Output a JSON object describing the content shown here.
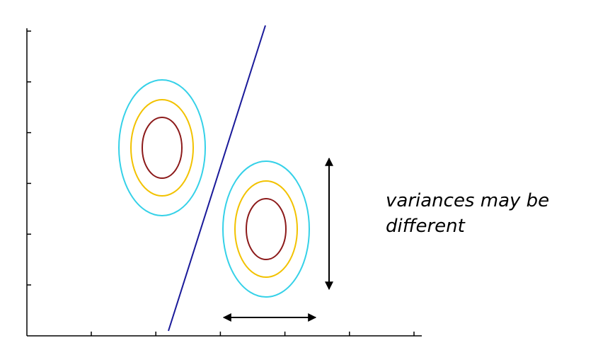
{
  "annotation": {
    "line1": "variances may be",
    "line2": "different"
  },
  "colors": {
    "outer_contour": "#35d1e8",
    "middle_contour": "#f2c200",
    "inner_contour": "#8c1a1a",
    "decision_line": "#1a1a9a",
    "axes": "#000000",
    "arrows": "#000000"
  },
  "axes": {
    "x_tick_count": 6,
    "y_tick_count": 6,
    "tick_labels": false
  },
  "clusters": [
    {
      "name": "left-cluster",
      "contour_levels": 3
    },
    {
      "name": "right-cluster",
      "contour_levels": 3
    }
  ],
  "arrows": [
    "vertical-double-arrow",
    "horizontal-double-arrow"
  ]
}
